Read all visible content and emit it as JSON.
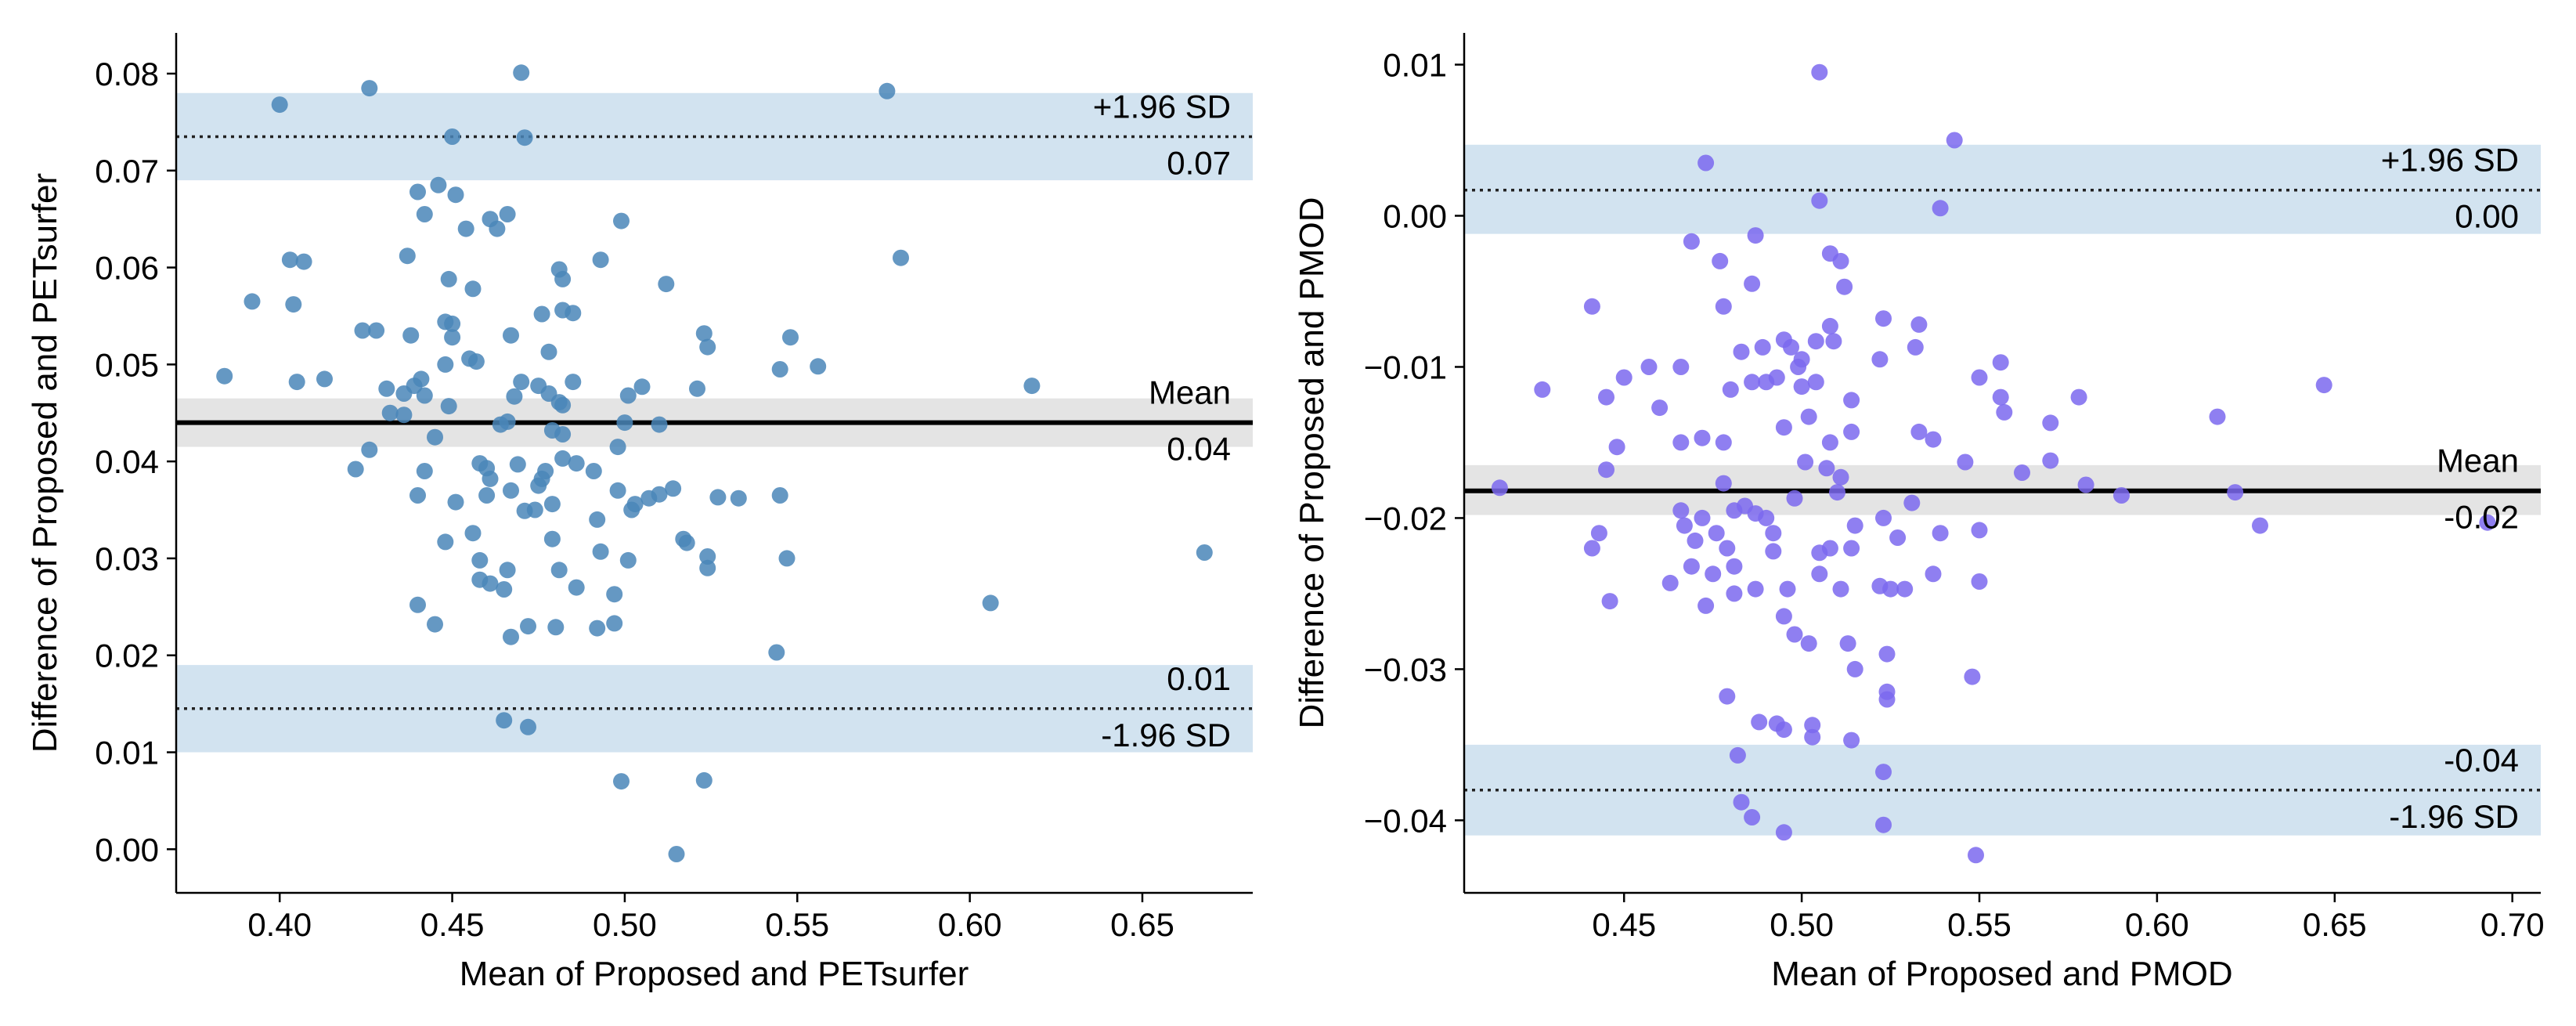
{
  "chart_data": [
    {
      "type": "scatter",
      "title": "",
      "xlabel": "Mean of Proposed and PETsurfer",
      "ylabel": "Difference of Proposed and PETsurfer",
      "xlim": [
        0.37,
        0.682
      ],
      "ylim": [
        -0.0045,
        0.0842
      ],
      "xticks": [
        0.4,
        0.45,
        0.5,
        0.55,
        0.6,
        0.65
      ],
      "xtick_labels": [
        "0.40",
        "0.45",
        "0.50",
        "0.55",
        "0.60",
        "0.65"
      ],
      "yticks": [
        0.0,
        0.01,
        0.02,
        0.03,
        0.04,
        0.05,
        0.06,
        0.07,
        0.08
      ],
      "ytick_labels": [
        "0.00",
        "0.01",
        "0.02",
        "0.03",
        "0.04",
        "0.05",
        "0.06",
        "0.07",
        "0.08"
      ],
      "point_color": "#4a86b8",
      "mean": 0.044,
      "mean_ci": [
        0.0415,
        0.0465
      ],
      "upper_loa": 0.0735,
      "upper_loa_ci": [
        0.069,
        0.078
      ],
      "lower_loa": 0.0145,
      "lower_loa_ci": [
        0.01,
        0.019
      ],
      "labels": {
        "upper_name": "+1.96 SD",
        "upper_value": "0.07",
        "mean_name": "Mean",
        "mean_value": "0.04",
        "lower_value": "0.01",
        "lower_name": "-1.96 SD"
      },
      "points": [
        [
          0.426,
          0.0785
        ],
        [
          0.47,
          0.0801
        ],
        [
          0.4,
          0.0768
        ],
        [
          0.576,
          0.0782
        ],
        [
          0.45,
          0.0735
        ],
        [
          0.471,
          0.0734
        ],
        [
          0.446,
          0.0685
        ],
        [
          0.44,
          0.0678
        ],
        [
          0.451,
          0.0675
        ],
        [
          0.461,
          0.065
        ],
        [
          0.466,
          0.0655
        ],
        [
          0.442,
          0.0655
        ],
        [
          0.499,
          0.0648
        ],
        [
          0.454,
          0.064
        ],
        [
          0.463,
          0.064
        ],
        [
          0.437,
          0.0612
        ],
        [
          0.403,
          0.0608
        ],
        [
          0.407,
          0.0606
        ],
        [
          0.58,
          0.061
        ],
        [
          0.493,
          0.0608
        ],
        [
          0.481,
          0.0598
        ],
        [
          0.449,
          0.0588
        ],
        [
          0.456,
          0.0578
        ],
        [
          0.482,
          0.0588
        ],
        [
          0.392,
          0.0565
        ],
        [
          0.404,
          0.0562
        ],
        [
          0.512,
          0.0583
        ],
        [
          0.476,
          0.0552
        ],
        [
          0.482,
          0.0556
        ],
        [
          0.485,
          0.0553
        ],
        [
          0.45,
          0.0542
        ],
        [
          0.448,
          0.0544
        ],
        [
          0.424,
          0.0535
        ],
        [
          0.428,
          0.0535
        ],
        [
          0.438,
          0.053
        ],
        [
          0.45,
          0.0528
        ],
        [
          0.467,
          0.053
        ],
        [
          0.523,
          0.0532
        ],
        [
          0.548,
          0.0528
        ],
        [
          0.524,
          0.0518
        ],
        [
          0.478,
          0.0513
        ],
        [
          0.455,
          0.0506
        ],
        [
          0.457,
          0.0503
        ],
        [
          0.448,
          0.05
        ],
        [
          0.384,
          0.0488
        ],
        [
          0.405,
          0.0482
        ],
        [
          0.413,
          0.0485
        ],
        [
          0.441,
          0.0485
        ],
        [
          0.439,
          0.0478
        ],
        [
          0.431,
          0.0475
        ],
        [
          0.436,
          0.047
        ],
        [
          0.442,
          0.0468
        ],
        [
          0.47,
          0.0482
        ],
        [
          0.475,
          0.0478
        ],
        [
          0.485,
          0.0482
        ],
        [
          0.505,
          0.0477
        ],
        [
          0.501,
          0.0468
        ],
        [
          0.521,
          0.0475
        ],
        [
          0.545,
          0.0495
        ],
        [
          0.556,
          0.0498
        ],
        [
          0.618,
          0.0478
        ],
        [
          0.468,
          0.0467
        ],
        [
          0.478,
          0.047
        ],
        [
          0.481,
          0.0461
        ],
        [
          0.482,
          0.0458
        ],
        [
          0.449,
          0.0457
        ],
        [
          0.432,
          0.045
        ],
        [
          0.436,
          0.0448
        ],
        [
          0.466,
          0.0441
        ],
        [
          0.464,
          0.0438
        ],
        [
          0.479,
          0.0432
        ],
        [
          0.482,
          0.0428
        ],
        [
          0.5,
          0.044
        ],
        [
          0.51,
          0.0438
        ],
        [
          0.498,
          0.0415
        ],
        [
          0.426,
          0.0412
        ],
        [
          0.445,
          0.0425
        ],
        [
          0.422,
          0.0392
        ],
        [
          0.442,
          0.039
        ],
        [
          0.458,
          0.0398
        ],
        [
          0.46,
          0.0393
        ],
        [
          0.469,
          0.0397
        ],
        [
          0.482,
          0.0403
        ],
        [
          0.486,
          0.0398
        ],
        [
          0.477,
          0.039
        ],
        [
          0.461,
          0.0382
        ],
        [
          0.476,
          0.0382
        ],
        [
          0.491,
          0.039
        ],
        [
          0.44,
          0.0365
        ],
        [
          0.451,
          0.0358
        ],
        [
          0.46,
          0.0365
        ],
        [
          0.467,
          0.037
        ],
        [
          0.475,
          0.0375
        ],
        [
          0.498,
          0.037
        ],
        [
          0.503,
          0.0356
        ],
        [
          0.507,
          0.0362
        ],
        [
          0.514,
          0.0372
        ],
        [
          0.51,
          0.0366
        ],
        [
          0.527,
          0.0363
        ],
        [
          0.533,
          0.0362
        ],
        [
          0.545,
          0.0365
        ],
        [
          0.479,
          0.0356
        ],
        [
          0.471,
          0.0349
        ],
        [
          0.474,
          0.035
        ],
        [
          0.492,
          0.034
        ],
        [
          0.502,
          0.035
        ],
        [
          0.456,
          0.0326
        ],
        [
          0.448,
          0.0317
        ],
        [
          0.479,
          0.032
        ],
        [
          0.493,
          0.0307
        ],
        [
          0.501,
          0.0298
        ],
        [
          0.517,
          0.032
        ],
        [
          0.518,
          0.0316
        ],
        [
          0.524,
          0.0302
        ],
        [
          0.524,
          0.029
        ],
        [
          0.547,
          0.03
        ],
        [
          0.458,
          0.0298
        ],
        [
          0.466,
          0.0288
        ],
        [
          0.481,
          0.0288
        ],
        [
          0.458,
          0.0278
        ],
        [
          0.461,
          0.0274
        ],
        [
          0.465,
          0.0268
        ],
        [
          0.486,
          0.027
        ],
        [
          0.497,
          0.0263
        ],
        [
          0.668,
          0.0306
        ],
        [
          0.606,
          0.0254
        ],
        [
          0.44,
          0.0252
        ],
        [
          0.445,
          0.0232
        ],
        [
          0.467,
          0.0219
        ],
        [
          0.472,
          0.023
        ],
        [
          0.48,
          0.0229
        ],
        [
          0.492,
          0.0228
        ],
        [
          0.497,
          0.0233
        ],
        [
          0.544,
          0.0203
        ],
        [
          0.465,
          0.0133
        ],
        [
          0.472,
          0.0126
        ],
        [
          0.499,
          0.007
        ],
        [
          0.523,
          0.0071
        ],
        [
          0.515,
          -0.0005
        ]
      ]
    },
    {
      "type": "scatter",
      "title": "",
      "xlabel": "Mean of Proposed and PMOD",
      "ylabel": "Difference of Proposed and PMOD",
      "xlim": [
        0.405,
        0.708
      ],
      "ylim": [
        -0.0448,
        0.0121
      ],
      "xticks": [
        0.45,
        0.5,
        0.55,
        0.6,
        0.65,
        0.7
      ],
      "xtick_labels": [
        "0.45",
        "0.50",
        "0.55",
        "0.60",
        "0.65",
        "0.70"
      ],
      "yticks": [
        -0.04,
        -0.03,
        -0.02,
        -0.01,
        0.0,
        0.01
      ],
      "ytick_labels": [
        "−0.04",
        "−0.03",
        "−0.02",
        "−0.01",
        "0.00",
        "0.01"
      ],
      "point_color": "#7b68ee",
      "mean": -0.0182,
      "mean_ci": [
        -0.0198,
        -0.0165
      ],
      "upper_loa": 0.0017,
      "upper_loa_ci": [
        -0.0012,
        0.0047
      ],
      "lower_loa": -0.038,
      "lower_loa_ci": [
        -0.041,
        -0.035
      ],
      "labels": {
        "upper_name": "+1.96 SD",
        "upper_value": "0.00",
        "mean_name": "Mean",
        "mean_value": "-0.02",
        "lower_value": "-0.04",
        "lower_name": "-1.96 SD"
      },
      "points": [
        [
          0.505,
          0.0095
        ],
        [
          0.543,
          0.005
        ],
        [
          0.473,
          0.0035
        ],
        [
          0.505,
          0.001
        ],
        [
          0.539,
          0.0005
        ],
        [
          0.469,
          -0.0017
        ],
        [
          0.487,
          -0.0013
        ],
        [
          0.508,
          -0.0025
        ],
        [
          0.511,
          -0.003
        ],
        [
          0.477,
          -0.003
        ],
        [
          0.486,
          -0.0045
        ],
        [
          0.512,
          -0.0047
        ],
        [
          0.441,
          -0.006
        ],
        [
          0.478,
          -0.006
        ],
        [
          0.523,
          -0.0068
        ],
        [
          0.533,
          -0.0072
        ],
        [
          0.508,
          -0.0073
        ],
        [
          0.504,
          -0.0083
        ],
        [
          0.509,
          -0.0083
        ],
        [
          0.489,
          -0.0087
        ],
        [
          0.495,
          -0.0082
        ],
        [
          0.497,
          -0.0087
        ],
        [
          0.483,
          -0.009
        ],
        [
          0.5,
          -0.0095
        ],
        [
          0.532,
          -0.0087
        ],
        [
          0.522,
          -0.0095
        ],
        [
          0.556,
          -0.0097
        ],
        [
          0.457,
          -0.01
        ],
        [
          0.45,
          -0.0107
        ],
        [
          0.427,
          -0.0115
        ],
        [
          0.445,
          -0.012
        ],
        [
          0.466,
          -0.01
        ],
        [
          0.48,
          -0.0115
        ],
        [
          0.486,
          -0.011
        ],
        [
          0.49,
          -0.011
        ],
        [
          0.493,
          -0.0107
        ],
        [
          0.504,
          -0.011
        ],
        [
          0.499,
          -0.01
        ],
        [
          0.5,
          -0.0113
        ],
        [
          0.55,
          -0.0107
        ],
        [
          0.556,
          -0.012
        ],
        [
          0.557,
          -0.013
        ],
        [
          0.578,
          -0.012
        ],
        [
          0.647,
          -0.0112
        ],
        [
          0.617,
          -0.0133
        ],
        [
          0.514,
          -0.0122
        ],
        [
          0.46,
          -0.0127
        ],
        [
          0.448,
          -0.0153
        ],
        [
          0.466,
          -0.015
        ],
        [
          0.472,
          -0.0147
        ],
        [
          0.478,
          -0.015
        ],
        [
          0.495,
          -0.014
        ],
        [
          0.502,
          -0.0133
        ],
        [
          0.508,
          -0.015
        ],
        [
          0.514,
          -0.0143
        ],
        [
          0.533,
          -0.0143
        ],
        [
          0.537,
          -0.0148
        ],
        [
          0.546,
          -0.0163
        ],
        [
          0.57,
          -0.0137
        ],
        [
          0.57,
          -0.0162
        ],
        [
          0.562,
          -0.017
        ],
        [
          0.58,
          -0.0178
        ],
        [
          0.59,
          -0.0185
        ],
        [
          0.622,
          -0.0183
        ],
        [
          0.629,
          -0.0205
        ],
        [
          0.693,
          -0.0203
        ],
        [
          0.415,
          -0.018
        ],
        [
          0.445,
          -0.0168
        ],
        [
          0.478,
          -0.0177
        ],
        [
          0.501,
          -0.0163
        ],
        [
          0.507,
          -0.0167
        ],
        [
          0.511,
          -0.0173
        ],
        [
          0.51,
          -0.0183
        ],
        [
          0.498,
          -0.0187
        ],
        [
          0.484,
          -0.0192
        ],
        [
          0.487,
          -0.0197
        ],
        [
          0.49,
          -0.02
        ],
        [
          0.466,
          -0.0195
        ],
        [
          0.472,
          -0.02
        ],
        [
          0.481,
          -0.0195
        ],
        [
          0.531,
          -0.019
        ],
        [
          0.443,
          -0.021
        ],
        [
          0.467,
          -0.0205
        ],
        [
          0.476,
          -0.021
        ],
        [
          0.47,
          -0.0215
        ],
        [
          0.492,
          -0.021
        ],
        [
          0.515,
          -0.0205
        ],
        [
          0.523,
          -0.02
        ],
        [
          0.527,
          -0.0213
        ],
        [
          0.539,
          -0.021
        ],
        [
          0.55,
          -0.0208
        ],
        [
          0.441,
          -0.022
        ],
        [
          0.479,
          -0.022
        ],
        [
          0.481,
          -0.0232
        ],
        [
          0.469,
          -0.0232
        ],
        [
          0.475,
          -0.0237
        ],
        [
          0.492,
          -0.0222
        ],
        [
          0.505,
          -0.0223
        ],
        [
          0.508,
          -0.022
        ],
        [
          0.514,
          -0.022
        ],
        [
          0.463,
          -0.0243
        ],
        [
          0.481,
          -0.025
        ],
        [
          0.487,
          -0.0247
        ],
        [
          0.496,
          -0.0247
        ],
        [
          0.505,
          -0.0237
        ],
        [
          0.511,
          -0.0247
        ],
        [
          0.522,
          -0.0245
        ],
        [
          0.525,
          -0.0247
        ],
        [
          0.529,
          -0.0247
        ],
        [
          0.537,
          -0.0237
        ],
        [
          0.55,
          -0.0242
        ],
        [
          0.446,
          -0.0255
        ],
        [
          0.473,
          -0.0258
        ],
        [
          0.495,
          -0.0265
        ],
        [
          0.498,
          -0.0277
        ],
        [
          0.502,
          -0.0283
        ],
        [
          0.513,
          -0.0283
        ],
        [
          0.524,
          -0.029
        ],
        [
          0.515,
          -0.03
        ],
        [
          0.548,
          -0.0305
        ],
        [
          0.479,
          -0.0318
        ],
        [
          0.524,
          -0.0315
        ],
        [
          0.524,
          -0.032
        ],
        [
          0.488,
          -0.0335
        ],
        [
          0.493,
          -0.0336
        ],
        [
          0.495,
          -0.034
        ],
        [
          0.503,
          -0.0337
        ],
        [
          0.503,
          -0.0345
        ],
        [
          0.514,
          -0.0347
        ],
        [
          0.482,
          -0.0357
        ],
        [
          0.523,
          -0.0368
        ],
        [
          0.483,
          -0.0388
        ],
        [
          0.486,
          -0.0398
        ],
        [
          0.495,
          -0.0408
        ],
        [
          0.523,
          -0.0403
        ],
        [
          0.549,
          -0.0423
        ]
      ]
    }
  ]
}
